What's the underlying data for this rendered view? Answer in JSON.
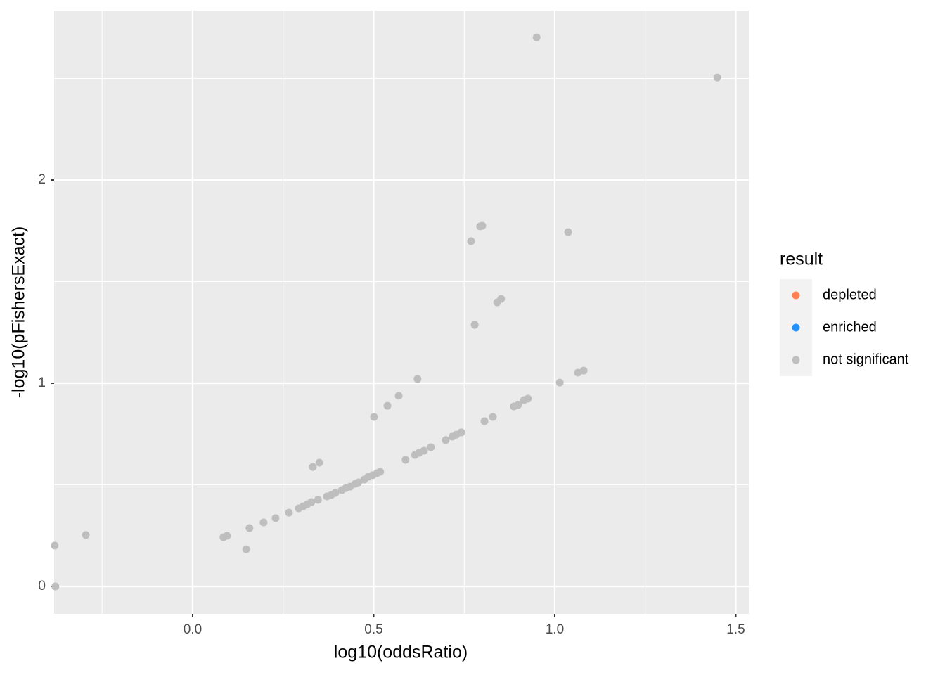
{
  "chart_data": {
    "type": "scatter",
    "x_label": "log10(oddsRatio)",
    "y_label": "-log10(pFishersExact)",
    "legend_title": "result",
    "legend_position": "right",
    "grid": true,
    "xlim": [
      -0.3825,
      1.536
    ],
    "ylim": [
      -0.135,
      2.834
    ],
    "xticks": [
      {
        "value": 0,
        "label": "0.0"
      },
      0.5,
      {
        "value": 1,
        "label": "1.0"
      },
      1.5
    ],
    "yticks": [
      0,
      1,
      2
    ],
    "x_minor_ticks": [
      -0.25,
      0.25,
      0.75,
      1.25
    ],
    "y_minor_ticks": [
      0.5,
      1.5,
      2.5
    ],
    "series": [
      {
        "name": "depleted",
        "color": "#ff7f50",
        "x": [],
        "y": []
      },
      {
        "name": "enriched",
        "color": "#1e90ff",
        "x": [],
        "y": []
      },
      {
        "name": "not significant",
        "color": "#bebebe",
        "x": [
          0.95,
          1.449,
          0.8,
          0.794,
          1.037,
          0.769,
          0.852,
          0.841,
          0.779,
          0.621,
          1.08,
          1.064,
          1.014,
          0.926,
          0.915,
          0.899,
          0.887,
          0.569,
          0.538,
          0.501,
          0.829,
          0.806,
          0.742,
          0.728,
          0.717,
          0.699,
          0.658,
          0.639,
          0.625,
          0.614,
          0.588,
          0.35,
          0.332,
          0.518,
          0.509,
          0.497,
          0.485,
          0.474,
          0.458,
          0.449,
          0.435,
          0.423,
          0.412,
          0.394,
          0.383,
          0.371,
          0.346,
          0.328,
          0.317,
          0.305,
          0.293,
          0.266,
          0.229,
          0.196,
          0.157,
          0.148,
          0.095,
          0.085,
          -0.295,
          -0.381,
          -0.379
        ],
        "y": [
          2.702,
          2.505,
          1.775,
          1.772,
          1.744,
          1.699,
          1.415,
          1.398,
          1.287,
          1.021,
          1.062,
          1.052,
          1.003,
          0.924,
          0.917,
          0.893,
          0.886,
          0.938,
          0.889,
          0.834,
          0.834,
          0.813,
          0.758,
          0.747,
          0.737,
          0.72,
          0.685,
          0.668,
          0.657,
          0.647,
          0.623,
          0.609,
          0.588,
          0.564,
          0.557,
          0.547,
          0.54,
          0.526,
          0.512,
          0.505,
          0.491,
          0.484,
          0.474,
          0.46,
          0.45,
          0.443,
          0.426,
          0.415,
          0.405,
          0.394,
          0.384,
          0.363,
          0.336,
          0.315,
          0.287,
          0.183,
          0.249,
          0.242,
          0.253,
          0.201,
          0.0
        ]
      }
    ]
  }
}
